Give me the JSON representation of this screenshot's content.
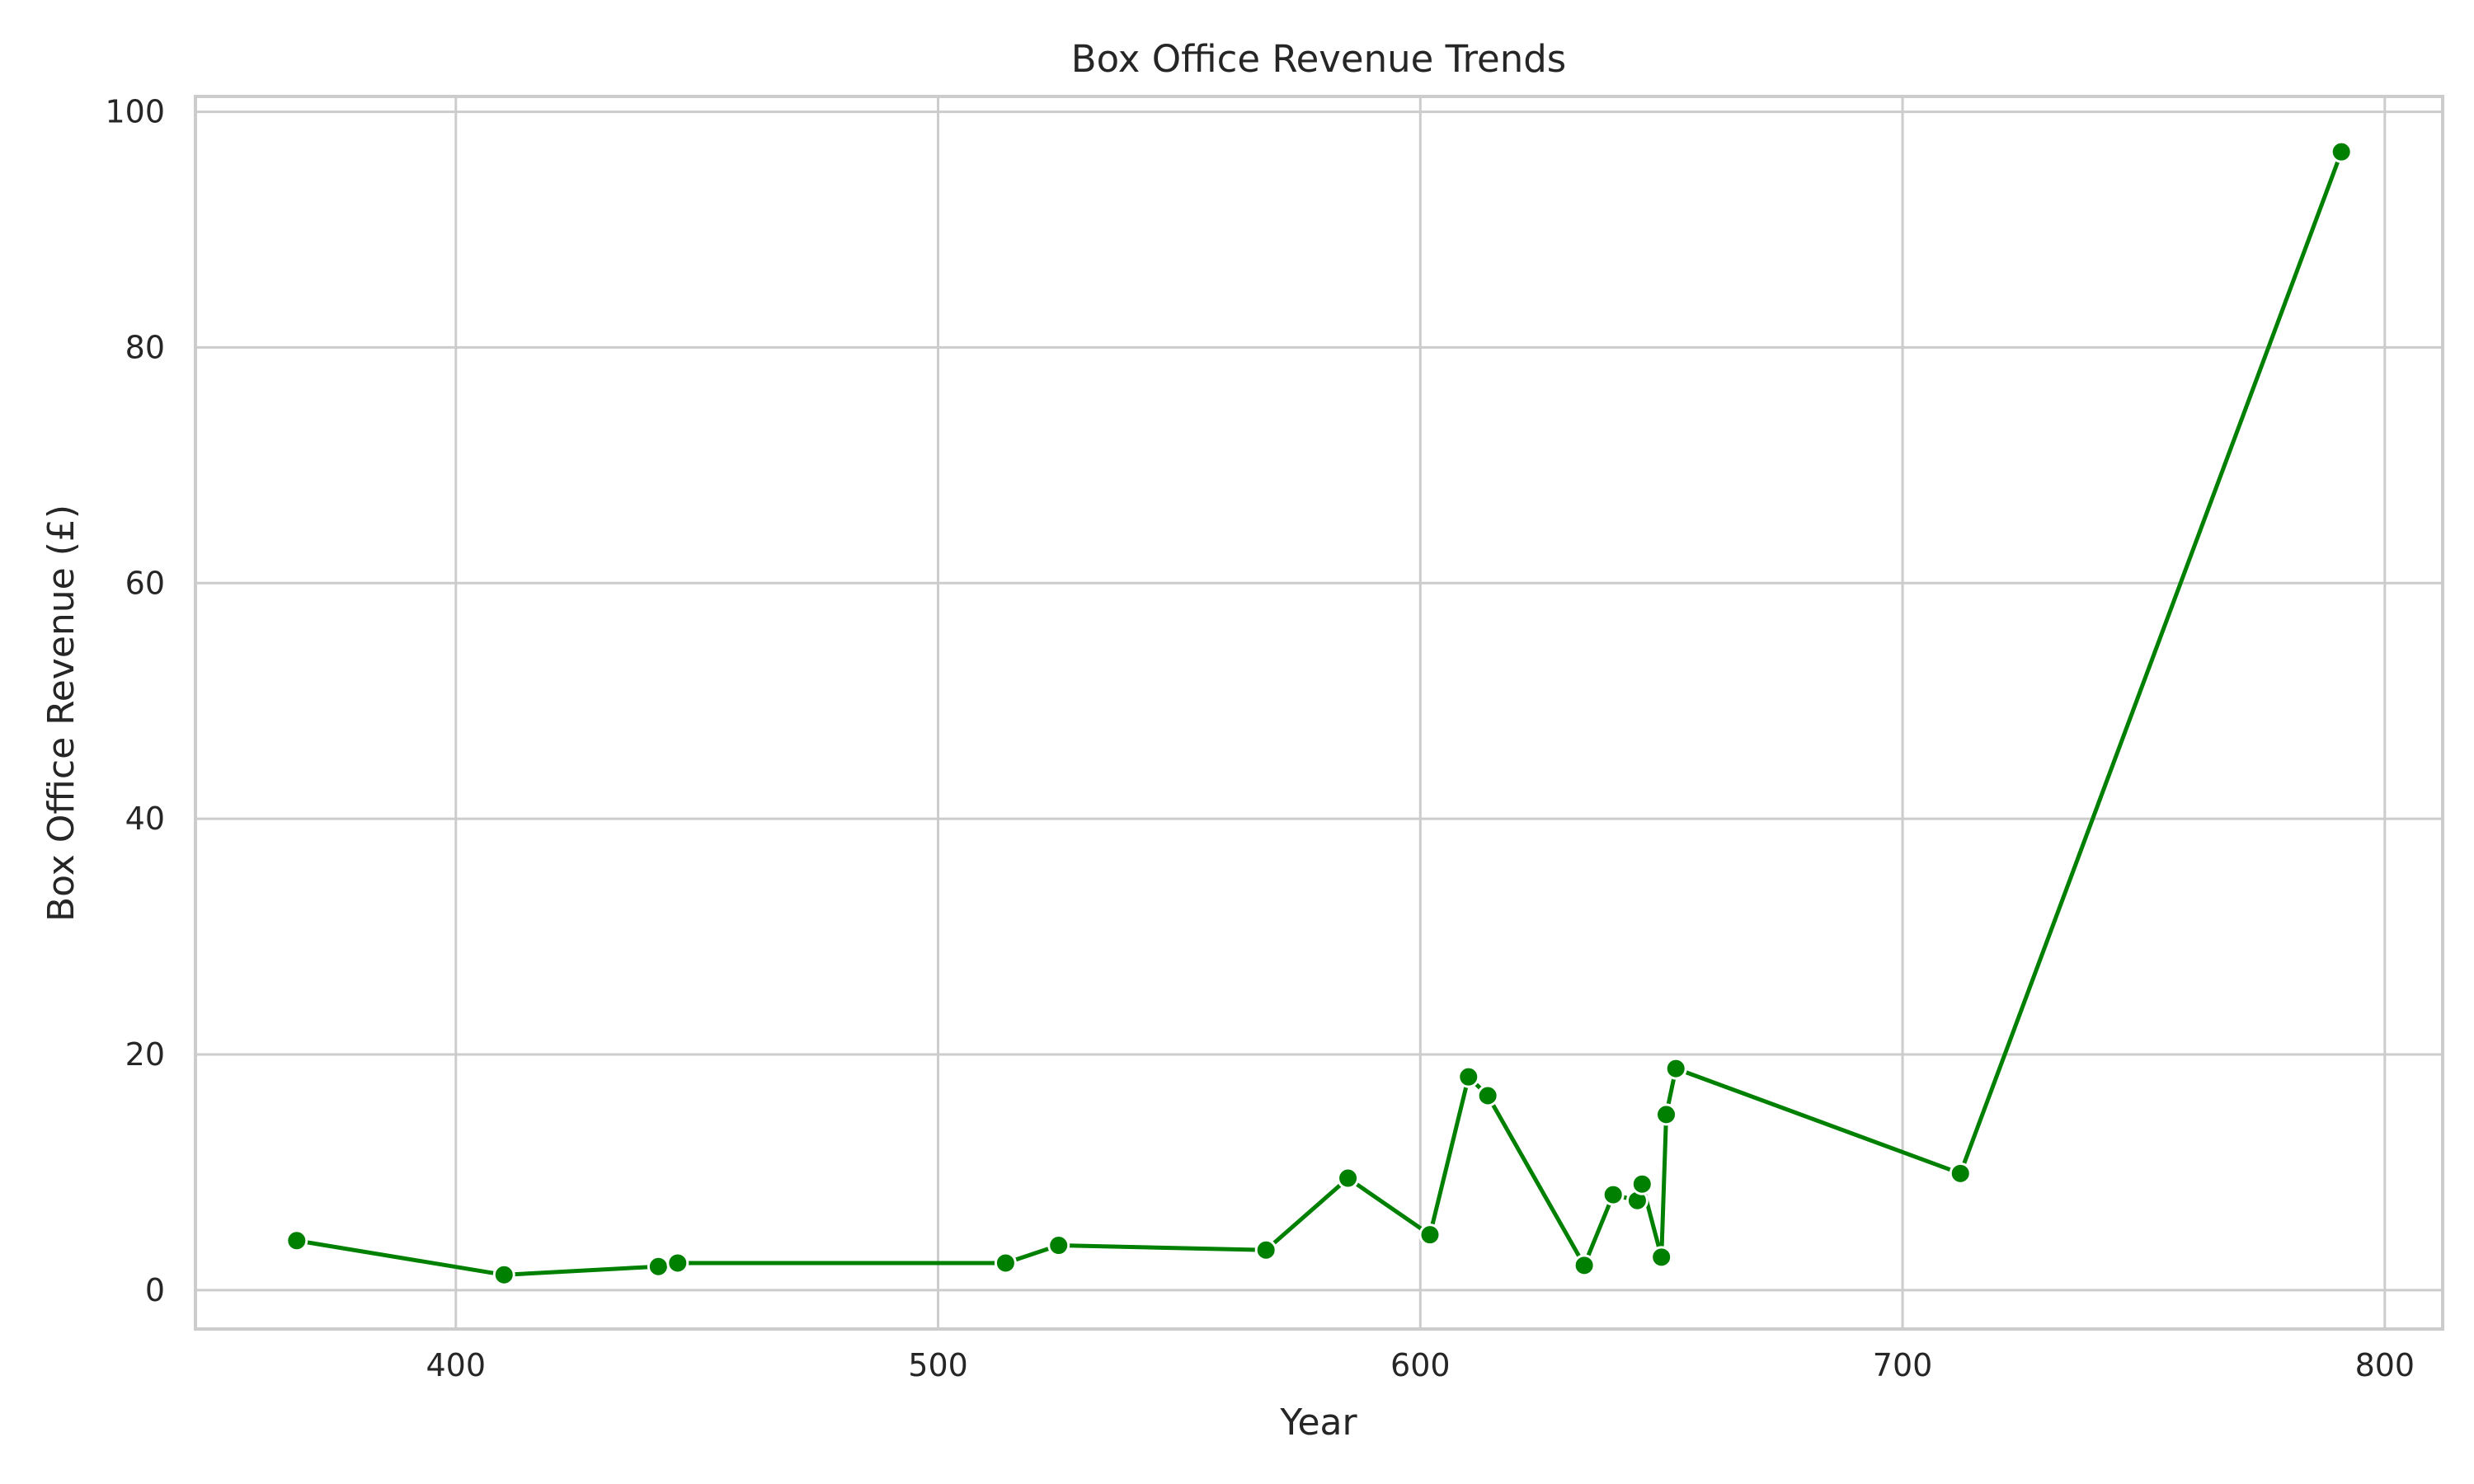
{
  "chart_data": {
    "type": "line",
    "title": "Box Office Revenue Trends",
    "xlabel": "Year",
    "ylabel": "Box Office Revenue (£)",
    "xlim": [
      346,
      812
    ],
    "ylim": [
      -3.3,
      101.3
    ],
    "xticks": [
      400,
      500,
      600,
      700,
      800
    ],
    "yticks": [
      0,
      20,
      40,
      60,
      80,
      100
    ],
    "grid": true,
    "legend": "none",
    "colors": {
      "line": "#008000",
      "marker": "#008000",
      "marker_edge": "#ffffff",
      "grid": "#cccccc",
      "spine": "#cccccc"
    },
    "series": [
      {
        "x": [
          367,
          410,
          442,
          446,
          514,
          525,
          568,
          585,
          602,
          610,
          614,
          634,
          640,
          645,
          646,
          650,
          651,
          653,
          712,
          791
        ],
        "y": [
          4.2,
          1.3,
          2.0,
          2.3,
          2.3,
          3.8,
          3.4,
          9.5,
          4.7,
          18.1,
          16.5,
          2.1,
          8.1,
          7.6,
          9.0,
          2.8,
          14.9,
          18.8,
          9.9,
          96.6
        ]
      }
    ]
  }
}
